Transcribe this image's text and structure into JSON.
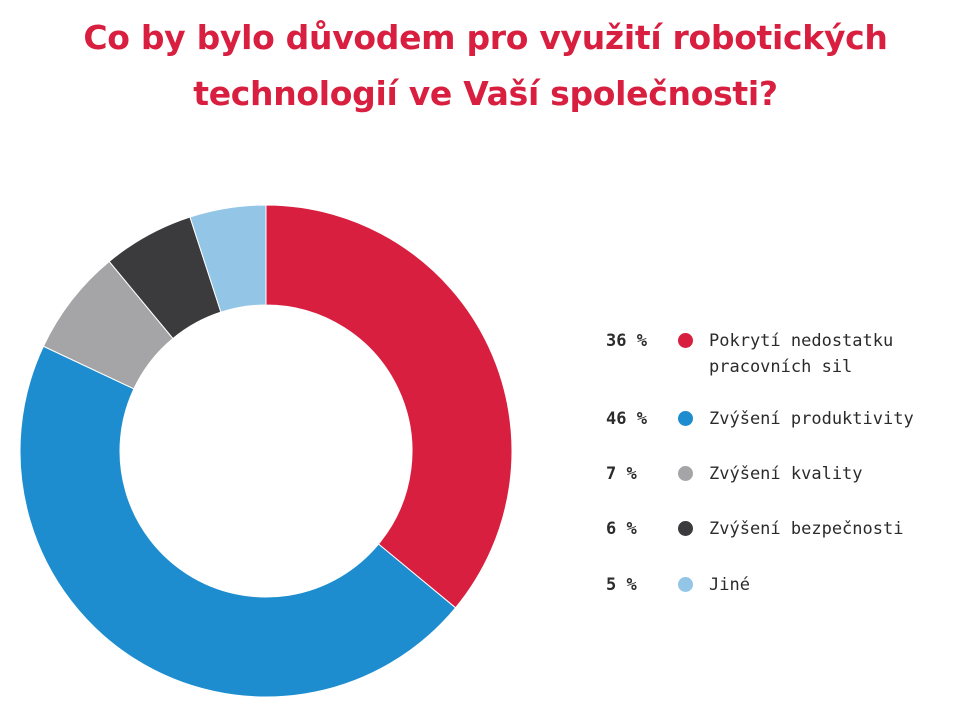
{
  "title": {
    "line1": "Co by bylo důvodem pro využití robotických",
    "line2": "technologií ve Vaší společnosti?"
  },
  "chart_data": {
    "type": "pie",
    "donut": true,
    "categories": [
      "Pokrytí nedostatku pracovních sil",
      "Zvýšení produktivity",
      "Zvýšení kvality",
      "Zvýšení bezpečnosti",
      "Jiné"
    ],
    "values": [
      36,
      46,
      7,
      6,
      5
    ],
    "value_labels": [
      "36 %",
      "46 %",
      "7 %",
      "6 %",
      "5 %"
    ],
    "colors": [
      "#d81f3f",
      "#1d8dcf",
      "#a5a5a7",
      "#3b3b3d",
      "#93c6e6"
    ],
    "legend_position": "right"
  }
}
